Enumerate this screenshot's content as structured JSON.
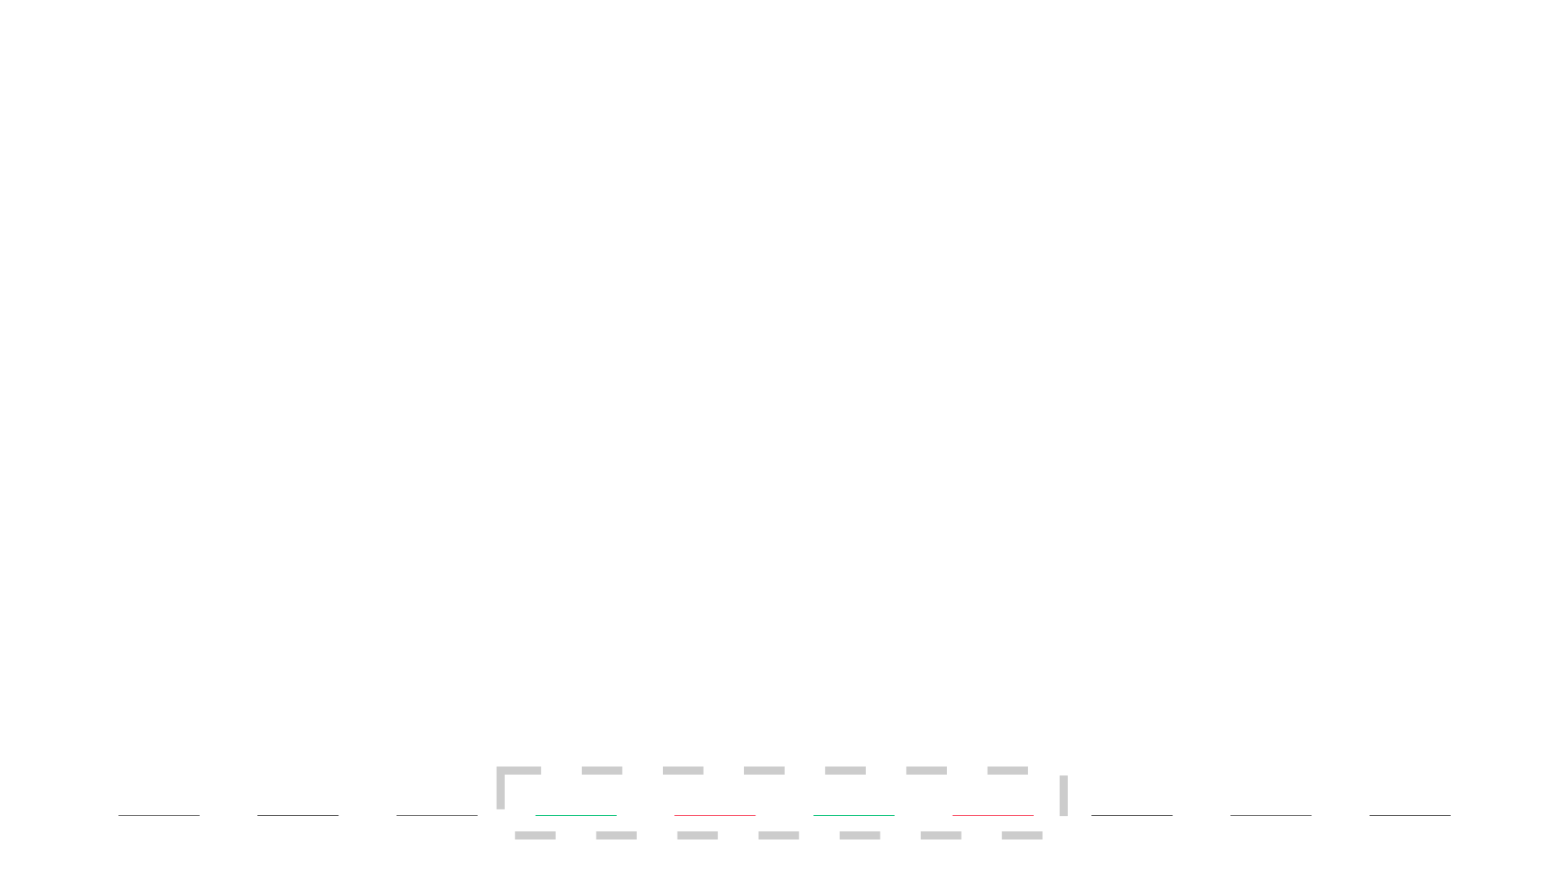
{
  "chart_data": {
    "type": "candlestick",
    "title": "",
    "xlabel": "",
    "ylabel": "",
    "axes_visible": false,
    "grid": false,
    "legend": "none",
    "ylim": [
      0,
      100
    ],
    "candles": [
      {
        "open": 0,
        "close": 0,
        "high": 0,
        "low": 0,
        "color": "#666666",
        "highlighted": false
      },
      {
        "open": 0,
        "close": 0,
        "high": 0,
        "low": 0,
        "color": "#4d4d4d",
        "highlighted": false
      },
      {
        "open": 0,
        "close": 0,
        "high": 0,
        "low": 0,
        "color": "#666666",
        "highlighted": false
      },
      {
        "open": 0,
        "close": 0,
        "high": 0,
        "low": 0,
        "color": "#02c076",
        "highlighted": true
      },
      {
        "open": 0,
        "close": 0,
        "high": 0,
        "low": 0,
        "color": "#f84960",
        "highlighted": true
      },
      {
        "open": 0,
        "close": 0,
        "high": 0,
        "low": 0,
        "color": "#02c076",
        "highlighted": true
      },
      {
        "open": 0,
        "close": 0,
        "high": 0,
        "low": 0,
        "color": "#f84960",
        "highlighted": true
      },
      {
        "open": 0,
        "close": 0,
        "high": 0,
        "low": 0,
        "color": "#4d4d4d",
        "highlighted": false
      },
      {
        "open": 0,
        "close": 0,
        "high": 0,
        "low": 0,
        "color": "#666666",
        "highlighted": false
      },
      {
        "open": 0,
        "close": 0,
        "high": 0,
        "low": 0,
        "color": "#4d4d4d",
        "highlighted": false
      }
    ],
    "highlight_box": {
      "style": "dashed",
      "color": "#cccccc",
      "spans_candles": [
        4,
        7
      ]
    }
  }
}
